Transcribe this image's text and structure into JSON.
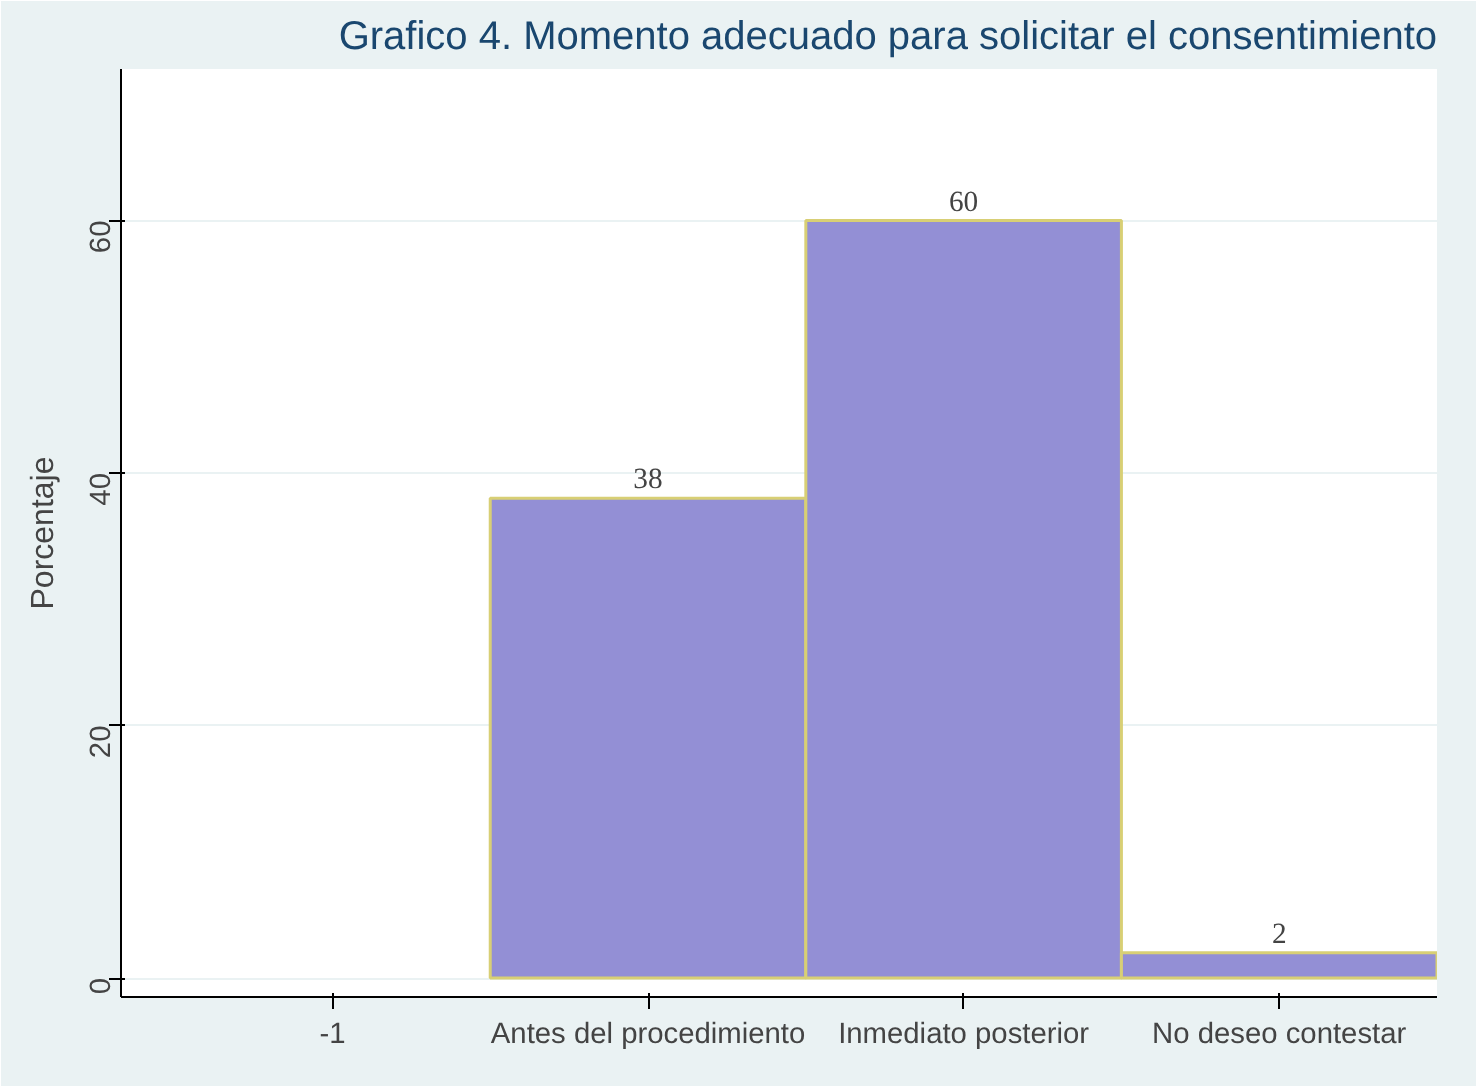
{
  "chart_data": {
    "type": "bar",
    "title": "Grafico 4. Momento adecuado para solicitar el consentimiento",
    "ylabel": "Porcentaje",
    "categories": [
      "-1",
      "Antes del procedimiento",
      "Inmediato posterior",
      "No deseo contestar"
    ],
    "values": [
      null,
      38,
      60,
      2
    ],
    "color": "#938fd5",
    "ylim": [
      -1.5,
      72
    ],
    "yticks": [
      0,
      20,
      40,
      60
    ],
    "grid": "y",
    "data_labels": true
  }
}
